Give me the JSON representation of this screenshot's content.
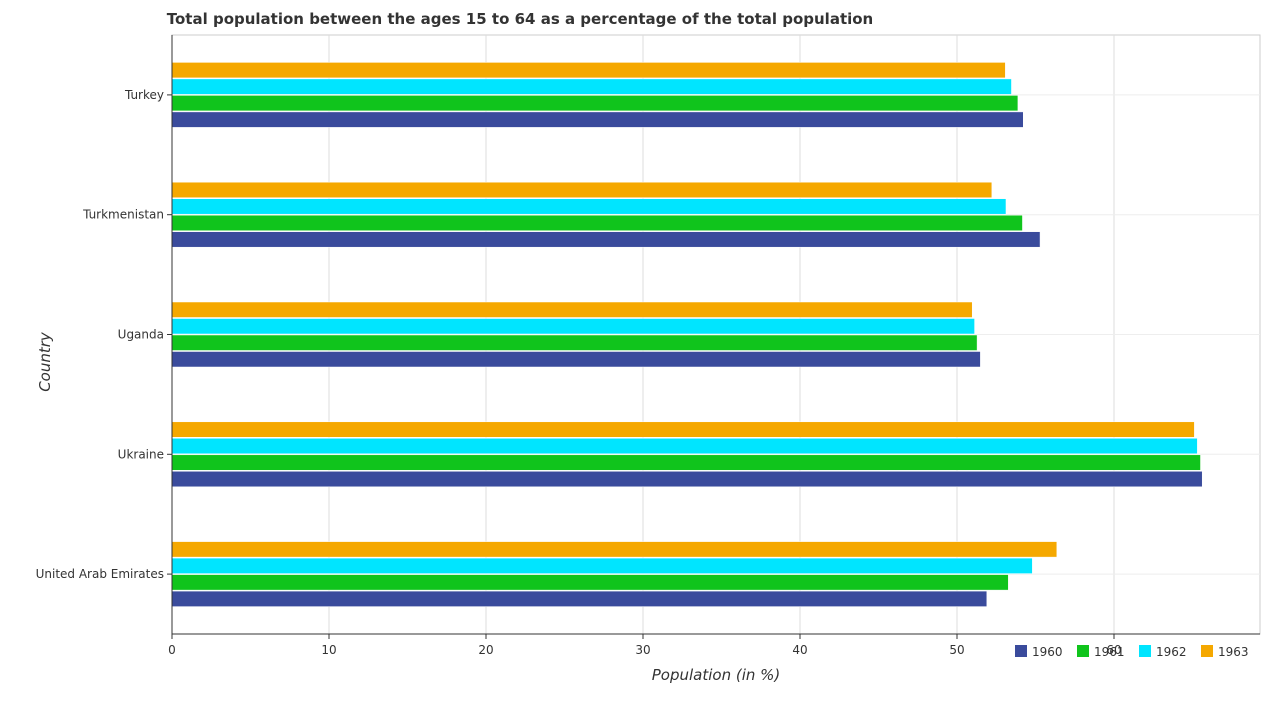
{
  "chart_data": {
    "type": "bar",
    "orientation": "horizontal",
    "title": "Total population between the ages 15 to 64 as a percentage of the total population",
    "xlabel": "Population (in %)",
    "ylabel": "Country",
    "categories": [
      "Turkey",
      "Turkmenistan",
      "Uganda",
      "Ukraine",
      "United Arab Emirates"
    ],
    "series": [
      {
        "name": "1960",
        "color": "#3a4b9c",
        "values": [
          54.22,
          55.29,
          51.49,
          65.62,
          51.9
        ]
      },
      {
        "name": "1961",
        "color": "#10c41c",
        "values": [
          53.88,
          54.17,
          51.28,
          65.51,
          53.27
        ]
      },
      {
        "name": "1962",
        "color": "#00e5ff",
        "values": [
          53.47,
          53.12,
          51.12,
          65.31,
          54.8
        ]
      },
      {
        "name": "1963",
        "color": "#f5a800",
        "values": [
          53.08,
          52.22,
          50.97,
          65.12,
          56.36
        ]
      }
    ],
    "xlim": [
      0,
      69.3
    ],
    "xticks": [
      0,
      10,
      20,
      30,
      40,
      50,
      60
    ],
    "grid": true,
    "legend_position": "bottom-right"
  }
}
